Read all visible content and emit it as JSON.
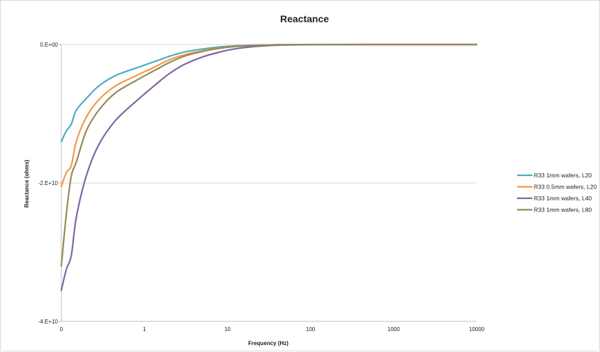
{
  "chart_data": {
    "type": "line",
    "title": "Reactance",
    "xlabel": "Frequency (Hz)",
    "ylabel": "Reactance (ohms)",
    "x_scale": "log",
    "xlim": [
      0,
      10000
    ],
    "ylim": [
      -40000000000,
      0
    ],
    "x_tick_values": [
      0,
      1,
      10,
      100,
      1000,
      10000
    ],
    "x_tick_labels": [
      "0",
      "1",
      "10",
      "100",
      "1000",
      "10000"
    ],
    "y_tick_values": [
      0,
      -20000000000,
      -40000000000
    ],
    "y_tick_labels": [
      "0.E+00",
      "-2.E+10",
      "-4.E+10"
    ],
    "grid": "horizontal",
    "legend_position": "right",
    "series": [
      {
        "name": "R33 1mm wafers, L20",
        "color": "#4bacc6",
        "points": [
          [
            0,
            -14000000000
          ],
          [
            0.06,
            -12500000000
          ],
          [
            0.12,
            -11500000000
          ],
          [
            0.18,
            -9500000000
          ],
          [
            0.3,
            -7800000000
          ],
          [
            0.45,
            -6000000000
          ],
          [
            0.65,
            -4500000000
          ],
          [
            0.9,
            -3400000000
          ],
          [
            1.3,
            -2500000000
          ],
          [
            2,
            -1700000000
          ],
          [
            3,
            -1100000000
          ],
          [
            5,
            -650000000
          ],
          [
            8,
            -350000000
          ],
          [
            12,
            -200000000
          ],
          [
            20,
            -100000000
          ],
          [
            35,
            -40000000
          ],
          [
            60,
            -10000000
          ],
          [
            100,
            -3000000
          ],
          [
            1000,
            0
          ],
          [
            10000,
            0
          ]
        ]
      },
      {
        "name": "R33 0.5mm wafers, L20",
        "color": "#f79646",
        "points": [
          [
            0,
            -20500000000
          ],
          [
            0.06,
            -18500000000
          ],
          [
            0.12,
            -17500000000
          ],
          [
            0.18,
            -14000000000
          ],
          [
            0.3,
            -10500000000
          ],
          [
            0.45,
            -8000000000
          ],
          [
            0.65,
            -6000000000
          ],
          [
            0.9,
            -4500000000
          ],
          [
            1.3,
            -3300000000
          ],
          [
            2,
            -2200000000
          ],
          [
            3,
            -1500000000
          ],
          [
            5,
            -900000000
          ],
          [
            8,
            -500000000
          ],
          [
            12,
            -280000000
          ],
          [
            20,
            -140000000
          ],
          [
            35,
            -60000000
          ],
          [
            60,
            -15000000
          ],
          [
            100,
            -4000000
          ],
          [
            1000,
            0
          ],
          [
            10000,
            0
          ]
        ]
      },
      {
        "name": "R33 1mm wafers, L40",
        "color": "#8064a2",
        "points": [
          [
            0,
            -35500000000
          ],
          [
            0.06,
            -32500000000
          ],
          [
            0.12,
            -30500000000
          ],
          [
            0.18,
            -25000000000
          ],
          [
            0.3,
            -19000000000
          ],
          [
            0.45,
            -14500000000
          ],
          [
            0.65,
            -11000000000
          ],
          [
            0.9,
            -8200000000
          ],
          [
            1.3,
            -6000000000
          ],
          [
            2,
            -4200000000
          ],
          [
            3,
            -2900000000
          ],
          [
            5,
            -1800000000
          ],
          [
            8,
            -1100000000
          ],
          [
            12,
            -650000000
          ],
          [
            20,
            -320000000
          ],
          [
            35,
            -130000000
          ],
          [
            60,
            -50000000
          ],
          [
            100,
            -15000000
          ],
          [
            1000,
            0
          ],
          [
            10000,
            0
          ]
        ]
      },
      {
        "name": "R33 1mm wafers, L80",
        "color": "#948a54",
        "points": [
          [
            0,
            -32000000000
          ],
          [
            0.06,
            -24500000000
          ],
          [
            0.12,
            -19000000000
          ],
          [
            0.18,
            -17000000000
          ],
          [
            0.3,
            -12500000000
          ],
          [
            0.45,
            -9500000000
          ],
          [
            0.65,
            -7000000000
          ],
          [
            0.9,
            -5200000000
          ],
          [
            1.3,
            -3800000000
          ],
          [
            2,
            -2600000000
          ],
          [
            3,
            -1700000000
          ],
          [
            5,
            -1000000000
          ],
          [
            8,
            -550000000
          ],
          [
            12,
            -300000000
          ],
          [
            20,
            -150000000
          ],
          [
            35,
            -60000000
          ],
          [
            60,
            -15000000
          ],
          [
            100,
            -4000000
          ],
          [
            1000,
            0
          ],
          [
            10000,
            0
          ]
        ]
      }
    ]
  }
}
